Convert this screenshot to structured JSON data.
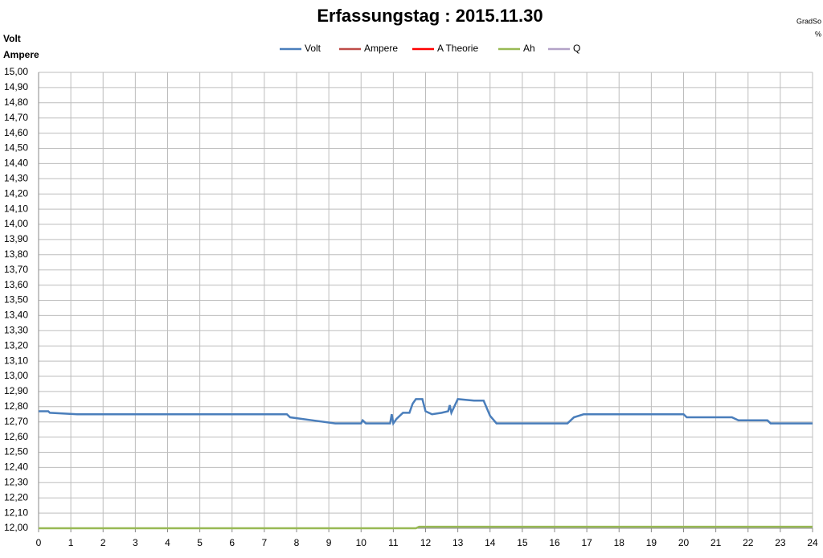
{
  "chart_data": {
    "type": "line",
    "title": "Erfassungstag  : 2015.11.30",
    "y_label_lines": [
      "Volt",
      "Ampere"
    ],
    "y2_label_lines": [
      "GradSo",
      "%"
    ],
    "x": [
      0,
      0.3,
      0.35,
      1.2,
      7.7,
      7.8,
      8.5,
      9.2,
      10,
      10.05,
      10.15,
      10.9,
      10.95,
      11.0,
      11.1,
      11.3,
      11.5,
      11.6,
      11.7,
      11.8,
      11.9,
      12.0,
      12.2,
      12.5,
      12.7,
      12.75,
      12.8,
      13.0,
      13.5,
      13.8,
      14.0,
      14.2,
      16.4,
      16.6,
      16.9,
      20.0,
      20.1,
      21.5,
      21.7,
      22.6,
      22.7,
      24
    ],
    "series": [
      {
        "name": "Volt",
        "color": "#4a7ebb",
        "values": [
          12.77,
          12.77,
          12.76,
          12.75,
          12.75,
          12.73,
          12.71,
          12.69,
          12.69,
          12.71,
          12.69,
          12.69,
          12.75,
          12.69,
          12.72,
          12.76,
          12.76,
          12.82,
          12.85,
          12.85,
          12.85,
          12.77,
          12.75,
          12.76,
          12.77,
          12.81,
          12.76,
          12.85,
          12.84,
          12.84,
          12.74,
          12.69,
          12.69,
          12.73,
          12.75,
          12.75,
          12.73,
          12.73,
          12.71,
          12.71,
          12.69,
          12.69
        ]
      },
      {
        "name": "Ampere",
        "color": "#be4b48",
        "values": [
          null,
          null,
          null,
          null,
          null,
          null,
          null,
          null,
          null,
          null,
          null,
          null,
          null,
          null,
          null,
          null,
          null,
          null,
          null,
          null,
          null,
          null,
          null,
          null,
          null,
          null,
          null,
          null,
          null,
          null,
          null,
          null,
          null,
          null,
          null,
          null,
          null,
          null,
          null,
          null,
          null,
          null
        ]
      },
      {
        "name": "A Theorie",
        "color": "#ff0000",
        "values": [
          null,
          null,
          null,
          null,
          null,
          null,
          null,
          null,
          null,
          null,
          null,
          null,
          null,
          null,
          null,
          null,
          null,
          null,
          null,
          null,
          null,
          null,
          null,
          null,
          null,
          null,
          null,
          null,
          null,
          null,
          null,
          null,
          null,
          null,
          null,
          null,
          null,
          null,
          null,
          null,
          null,
          null
        ]
      },
      {
        "name": "Ah",
        "color": "#98b954",
        "values": [
          12.0,
          12.0,
          12.0,
          12.0,
          12.0,
          12.0,
          12.0,
          12.0,
          12.0,
          12.0,
          12.0,
          12.0,
          12.0,
          12.0,
          12.0,
          12.0,
          12.0,
          12.0,
          12.0,
          12.01,
          12.01,
          12.01,
          12.01,
          12.01,
          12.01,
          12.01,
          12.01,
          12.01,
          12.01,
          12.01,
          12.01,
          12.01,
          12.01,
          12.01,
          12.01,
          12.01,
          12.01,
          12.01,
          12.01,
          12.01,
          12.01,
          12.01
        ]
      },
      {
        "name": "Q",
        "color": "#b3a2c7",
        "values": [
          null,
          null,
          null,
          null,
          null,
          null,
          null,
          null,
          null,
          null,
          null,
          null,
          null,
          null,
          null,
          null,
          null,
          null,
          null,
          null,
          null,
          null,
          null,
          null,
          null,
          null,
          null,
          null,
          null,
          null,
          null,
          null,
          null,
          null,
          null,
          null,
          null,
          null,
          null,
          null,
          null,
          null
        ]
      }
    ],
    "xlim": [
      0,
      24
    ],
    "xticks": [
      0,
      1,
      2,
      3,
      4,
      5,
      6,
      7,
      8,
      9,
      10,
      11,
      12,
      13,
      14,
      15,
      16,
      17,
      18,
      19,
      20,
      21,
      22,
      23,
      24
    ],
    "ylim": [
      12,
      15
    ],
    "yticks": [
      {
        "value": 12.0,
        "label": "12,00"
      },
      {
        "value": 12.1,
        "label": "12,10"
      },
      {
        "value": 12.2,
        "label": "12,20"
      },
      {
        "value": 12.3,
        "label": "12,30"
      },
      {
        "value": 12.4,
        "label": "12,40"
      },
      {
        "value": 12.5,
        "label": "12,50"
      },
      {
        "value": 12.6,
        "label": "12,60"
      },
      {
        "value": 12.7,
        "label": "12,70"
      },
      {
        "value": 12.8,
        "label": "12,80"
      },
      {
        "value": 12.9,
        "label": "12,90"
      },
      {
        "value": 13.0,
        "label": "13,00"
      },
      {
        "value": 13.1,
        "label": "13,10"
      },
      {
        "value": 13.2,
        "label": "13,20"
      },
      {
        "value": 13.3,
        "label": "13,30"
      },
      {
        "value": 13.4,
        "label": "13,40"
      },
      {
        "value": 13.5,
        "label": "13,50"
      },
      {
        "value": 13.6,
        "label": "13,60"
      },
      {
        "value": 13.7,
        "label": "13,70"
      },
      {
        "value": 13.8,
        "label": "13,80"
      },
      {
        "value": 13.9,
        "label": "13,90"
      },
      {
        "value": 14.0,
        "label": "14,00"
      },
      {
        "value": 14.1,
        "label": "14,10"
      },
      {
        "value": 14.2,
        "label": "14,20"
      },
      {
        "value": 14.3,
        "label": "14,30"
      },
      {
        "value": 14.4,
        "label": "14,40"
      },
      {
        "value": 14.5,
        "label": "14,50"
      },
      {
        "value": 14.6,
        "label": "14,60"
      },
      {
        "value": 14.7,
        "label": "14,70"
      },
      {
        "value": 14.8,
        "label": "14,80"
      },
      {
        "value": 14.9,
        "label": "14,90"
      },
      {
        "value": 15.0,
        "label": "15,00"
      }
    ],
    "grid": true
  }
}
